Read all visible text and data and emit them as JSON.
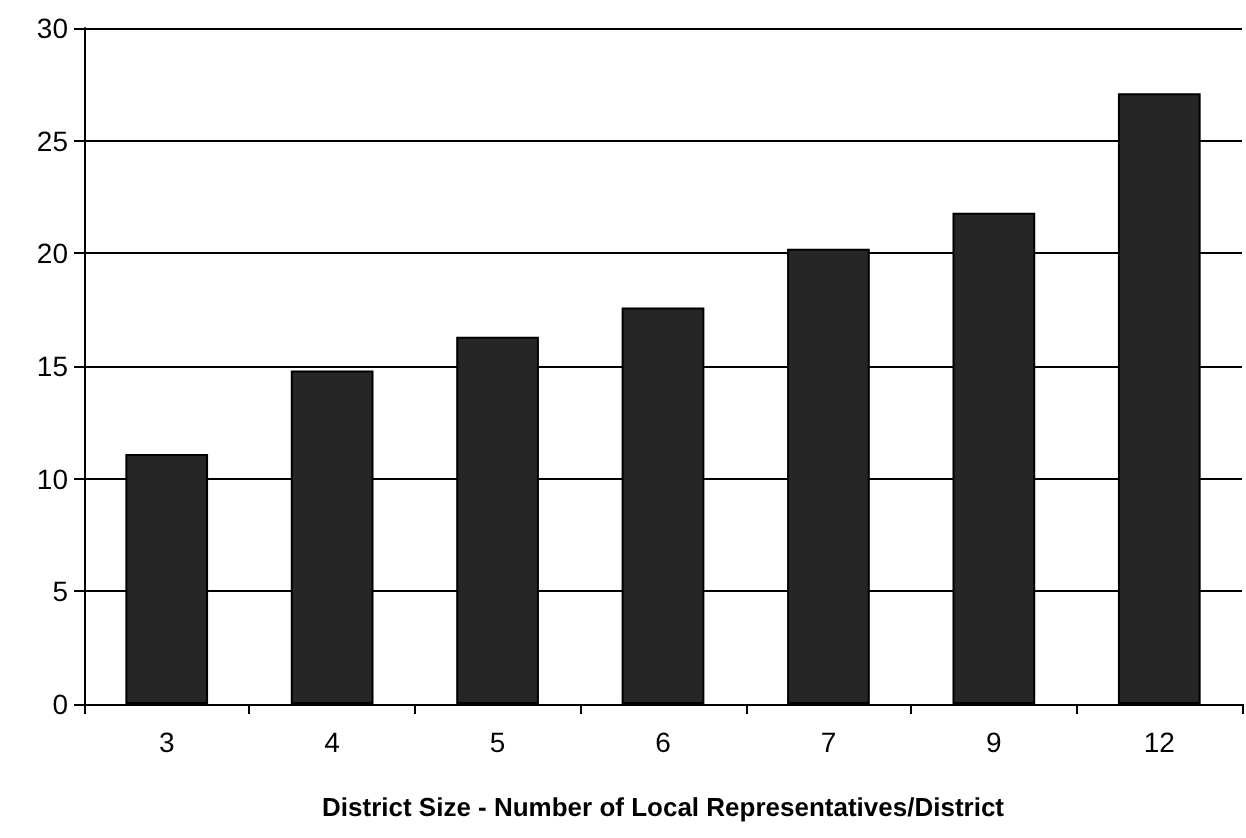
{
  "chart_data": {
    "type": "bar",
    "xlabel": "District Size - Number of Local Representatives/District",
    "categories": [
      "3",
      "4",
      "5",
      "6",
      "7",
      "9",
      "12"
    ],
    "values": [
      11.1,
      14.8,
      16.3,
      17.6,
      20.2,
      21.8,
      27.1
    ],
    "color": "#262626",
    "ylim": [
      0,
      30
    ],
    "yticks": [
      0,
      5,
      10,
      15,
      20,
      25,
      30
    ],
    "grid": "y"
  }
}
